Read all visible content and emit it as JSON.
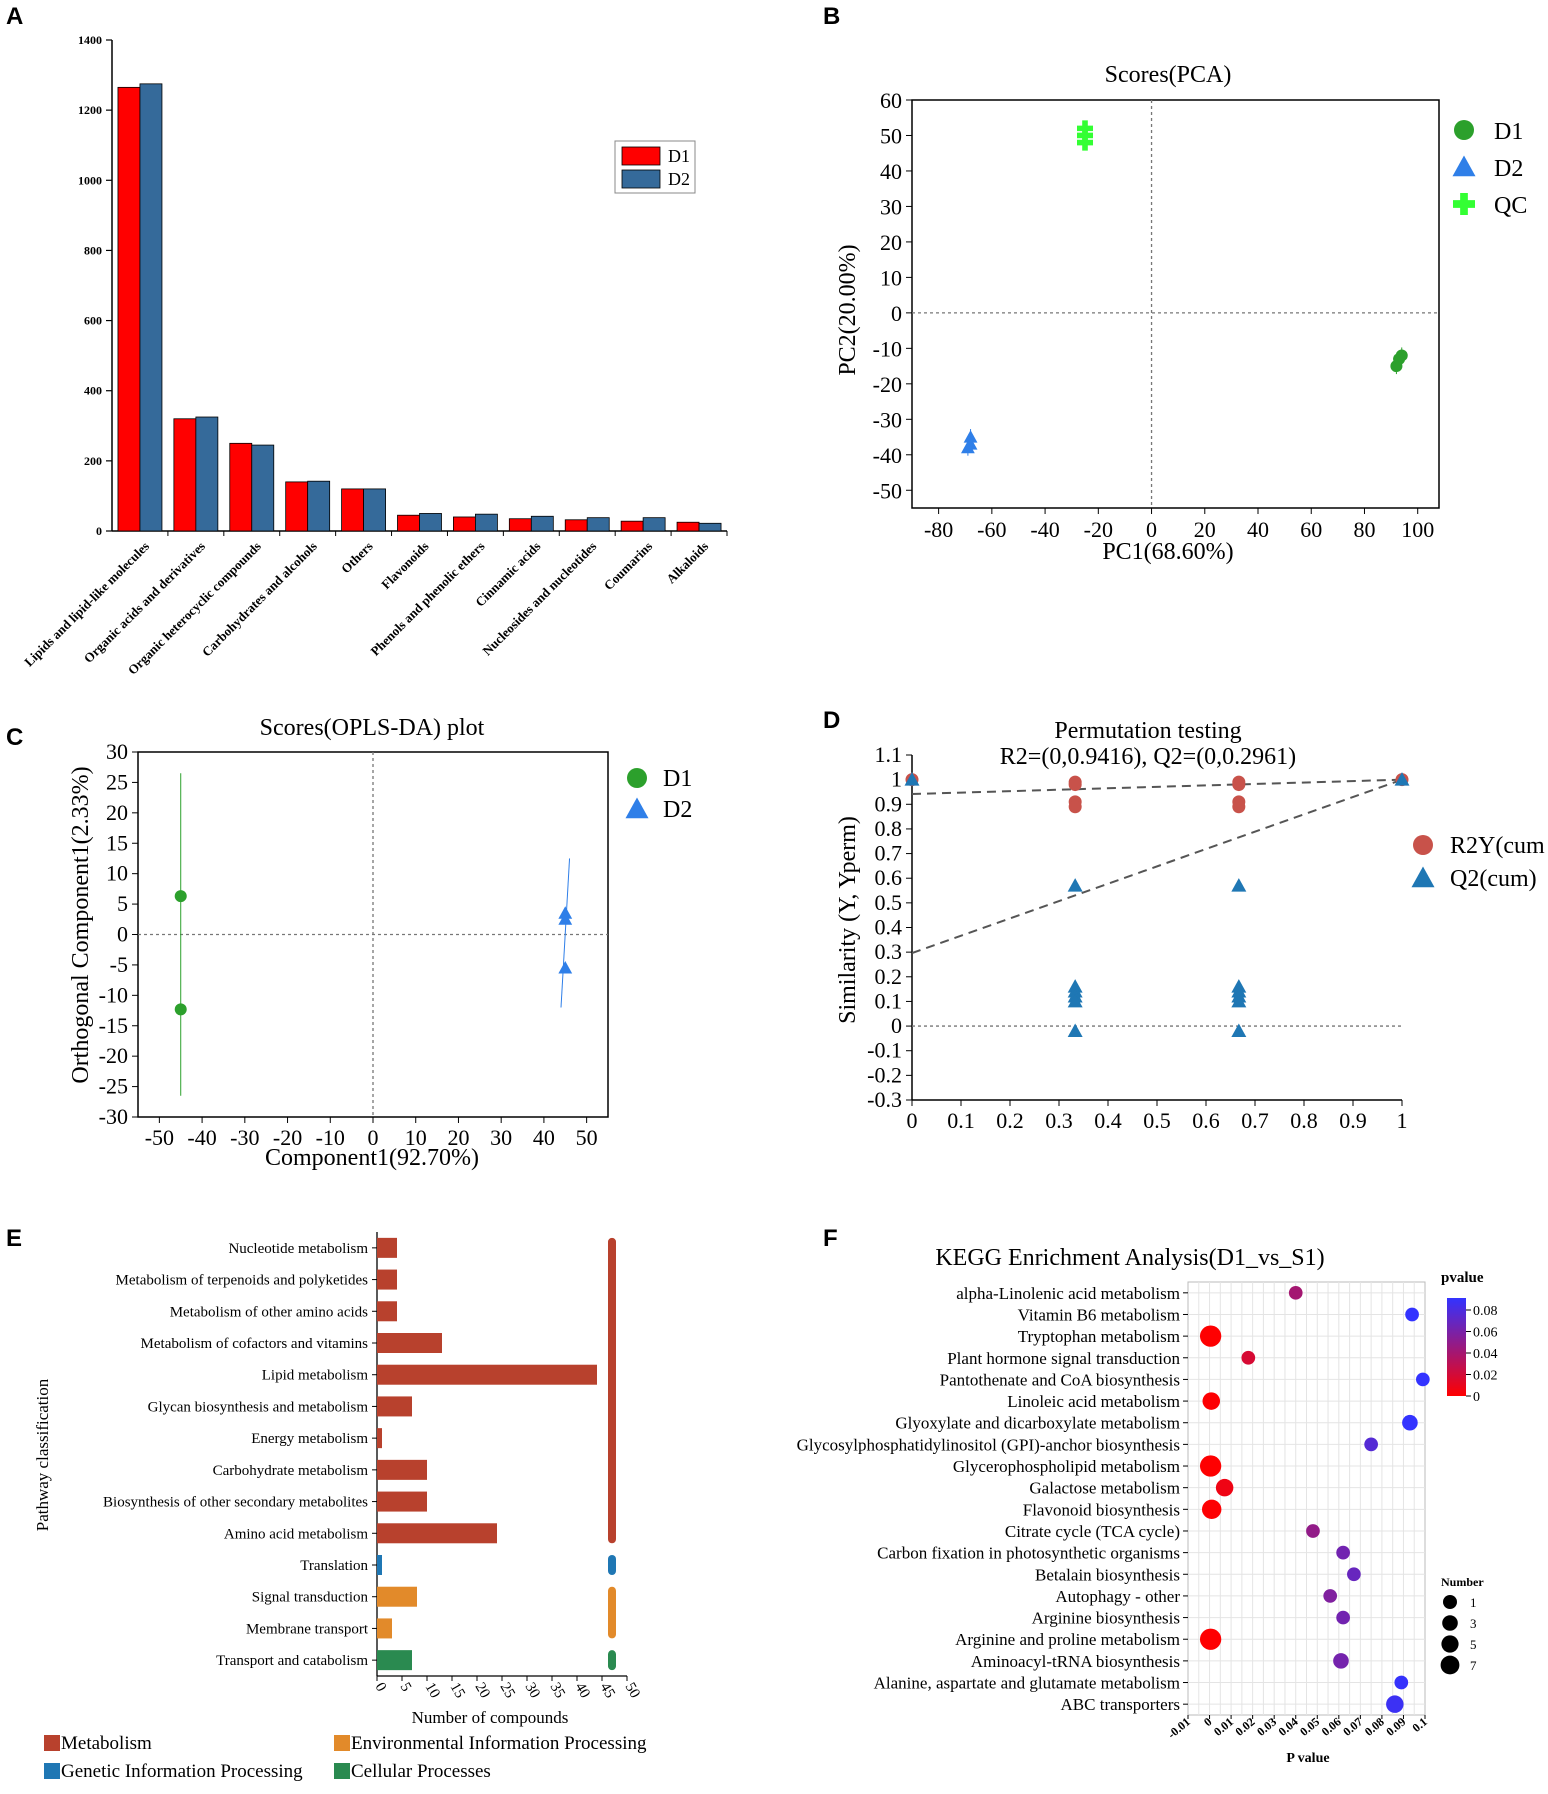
{
  "panel_labels": [
    "A",
    "B",
    "C",
    "D",
    "E",
    "F"
  ],
  "chart_data": [
    {
      "id": "A",
      "type": "bar",
      "title": "",
      "categories": [
        "Lipids and lipid-like molecules",
        "Organic acids and derivatives",
        "Organic heterocyclic compounds",
        "Carbohydrates and alcohols",
        "Others",
        "Flavonoids",
        "Phenols and phenolic ethers",
        "Cinnamic acids",
        "Nucleosides and nucleotides",
        "Coumarins",
        "Alkaloids"
      ],
      "series": [
        {
          "name": "D1",
          "color": "#ff0000",
          "values": [
            1265,
            320,
            250,
            140,
            120,
            45,
            40,
            35,
            32,
            28,
            25
          ]
        },
        {
          "name": "D2",
          "color": "#356a9a",
          "values": [
            1275,
            325,
            245,
            142,
            120,
            50,
            48,
            42,
            38,
            38,
            22
          ]
        }
      ],
      "ylim": [
        0,
        1400
      ],
      "yticks": [
        "0",
        "200",
        "400",
        "600",
        "800",
        "1000",
        "1200",
        "1400"
      ],
      "legend": [
        "D1",
        "D2"
      ]
    },
    {
      "id": "B",
      "type": "scatter",
      "title": "Scores(PCA)",
      "xlabel": "PC1(68.60%)",
      "ylabel": "PC2(20.00%)",
      "xlim": [
        -90,
        108
      ],
      "ylim": [
        -55,
        60
      ],
      "xticks": [
        "-80",
        "-60",
        "-40",
        "-20",
        "0",
        "20",
        "40",
        "60",
        "80",
        "100"
      ],
      "yticks": [
        "60",
        "50",
        "40",
        "30",
        "20",
        "10",
        "0",
        "-10",
        "-20",
        "-30",
        "-40",
        "-50"
      ],
      "series": [
        {
          "name": "D1",
          "color": "#2ca02c",
          "marker": "circle",
          "points": [
            [
              94,
              -12
            ],
            [
              92,
              -15
            ],
            [
              93,
              -13
            ]
          ]
        },
        {
          "name": "D2",
          "color": "#2f7fe8",
          "marker": "triangle",
          "points": [
            [
              -68,
              -35
            ],
            [
              -68,
              -37
            ],
            [
              -69,
              -38
            ]
          ]
        },
        {
          "name": "QC",
          "color": "#33ff33",
          "marker": "plus",
          "points": [
            [
              -25,
              52
            ],
            [
              -25,
              50
            ],
            [
              -25,
              48
            ]
          ]
        }
      ],
      "legend": [
        "D1",
        "D2",
        "QC"
      ]
    },
    {
      "id": "C",
      "type": "scatter",
      "title": "Scores(OPLS-DA) plot",
      "xlabel": "Component1(92.70%)",
      "ylabel": "Orthogonal Component1(2.33%)",
      "xlim": [
        -55,
        55
      ],
      "ylim": [
        -30,
        30
      ],
      "xticks": [
        "-50",
        "-40",
        "-30",
        "-20",
        "-10",
        "0",
        "10",
        "20",
        "30",
        "40",
        "50"
      ],
      "yticks": [
        "30",
        "25",
        "20",
        "15",
        "10",
        "5",
        "0",
        "-5",
        "-10",
        "-15",
        "-20",
        "-25",
        "-30"
      ],
      "series": [
        {
          "name": "D1",
          "color": "#2ca02c",
          "marker": "circle",
          "points": [
            [
              -45,
              6.3
            ],
            [
              -45,
              -12.3
            ]
          ]
        },
        {
          "name": "D2",
          "color": "#2f7fe8",
          "marker": "triangle",
          "points": [
            [
              45,
              3.5
            ],
            [
              45,
              2.5
            ],
            [
              45,
              -5.5
            ]
          ]
        }
      ],
      "legend": [
        "D1",
        "D2"
      ]
    },
    {
      "id": "D",
      "type": "scatter",
      "title": "Permutation testing",
      "subtitle": "R2=(0,0.9416), Q2=(0,0.2961)",
      "xlabel": "",
      "ylabel": "Similarity (Y, Yperm)",
      "xlim": [
        0,
        1
      ],
      "ylim": [
        -0.3,
        1.1
      ],
      "xticks": [
        "0",
        "0.1",
        "0.2",
        "0.3",
        "0.4",
        "0.5",
        "0.6",
        "0.7",
        "0.8",
        "0.9",
        "1"
      ],
      "yticks": [
        "1.1",
        "1",
        "0.9",
        "0.8",
        "0.7",
        "0.6",
        "0.5",
        "0.4",
        "0.3",
        "0.2",
        "0.1",
        "0",
        "-0.1",
        "-0.2",
        "-0.3"
      ],
      "series": [
        {
          "name": "R2Y(cum",
          "color": "#c8524a",
          "marker": "circle",
          "points": [
            [
              0,
              1
            ],
            [
              0.333,
              0.99
            ],
            [
              0.333,
              0.98
            ],
            [
              0.333,
              0.91
            ],
            [
              0.333,
              0.89
            ],
            [
              0.667,
              0.99
            ],
            [
              0.667,
              0.98
            ],
            [
              0.667,
              0.91
            ],
            [
              0.667,
              0.89
            ],
            [
              1,
              1
            ]
          ]
        },
        {
          "name": "Q2(cum)",
          "color": "#1f77b4",
          "marker": "triangle",
          "points": [
            [
              0,
              1
            ],
            [
              0.333,
              0.57
            ],
            [
              0.333,
              0.16
            ],
            [
              0.333,
              0.14
            ],
            [
              0.333,
              0.12
            ],
            [
              0.333,
              0.1
            ],
            [
              0.333,
              -0.02
            ],
            [
              0.667,
              0.57
            ],
            [
              0.667,
              0.16
            ],
            [
              0.667,
              0.14
            ],
            [
              0.667,
              0.12
            ],
            [
              0.667,
              0.1
            ],
            [
              0.667,
              -0.02
            ],
            [
              1,
              1
            ]
          ]
        }
      ],
      "lines": [
        {
          "from": [
            0,
            0.9416
          ],
          "to": [
            1,
            1
          ]
        },
        {
          "from": [
            0,
            0.2961
          ],
          "to": [
            1,
            1
          ]
        }
      ],
      "legend": [
        "R2Y(cum",
        "Q2(cum)"
      ]
    },
    {
      "id": "E",
      "type": "bar",
      "orientation": "horizontal",
      "xlabel": "Number of compounds",
      "ylabel": "Pathway classification",
      "xlim": [
        0,
        50
      ],
      "xticks": [
        "0",
        "5",
        "10",
        "15",
        "20",
        "25",
        "30",
        "35",
        "40",
        "45",
        "50"
      ],
      "categories": [
        "Nucleotide metabolism",
        "Metabolism of terpenoids and polyketides",
        "Metabolism of other amino acids",
        "Metabolism of cofactors and vitamins",
        "Lipid metabolism",
        "Glycan biosynthesis and metabolism",
        "Energy metabolism",
        "Carbohydrate metabolism",
        "Biosynthesis of other secondary metabolites",
        "Amino acid metabolism",
        "Translation",
        "Signal transduction",
        "Membrane transport",
        "Transport and catabolism"
      ],
      "values": [
        4,
        4,
        4,
        13,
        44,
        7,
        1,
        10,
        10,
        24,
        1,
        8,
        3,
        7
      ],
      "groups": [
        "Metabolism",
        "Metabolism",
        "Metabolism",
        "Metabolism",
        "Metabolism",
        "Metabolism",
        "Metabolism",
        "Metabolism",
        "Metabolism",
        "Metabolism",
        "Genetic Information Processing",
        "Environmental Information Processing",
        "Environmental Information Processing",
        "Cellular Processes"
      ],
      "group_colors": {
        "Metabolism": "#b8412d",
        "Environmental Information Processing": "#e28a2a",
        "Genetic Information Processing": "#1f77b4",
        "Cellular Processes": "#2a8a50"
      },
      "legend": [
        "Metabolism",
        "Environmental Information Processing",
        "Genetic Information Processing",
        "Cellular Processes"
      ]
    },
    {
      "id": "F",
      "type": "scatter",
      "title": "KEGG Enrichment Analysis(D1_vs_S1)",
      "xlabel": "P value",
      "xlim": [
        -0.01,
        0.1
      ],
      "xticks": [
        "-0.01",
        "0",
        "0.01",
        "0.02",
        "0.03",
        "0.04",
        "0.05",
        "0.06",
        "0.07",
        "0.08",
        "0.09",
        "0.1"
      ],
      "categories": [
        "alpha-Linolenic acid metabolism",
        "Vitamin B6 metabolism",
        "Tryptophan metabolism",
        "Plant hormone signal transduction",
        "Pantothenate and CoA biosynthesis",
        "Linoleic acid metabolism",
        "Glyoxylate and dicarboxylate metabolism",
        "Glycosylphosphatidylinositol (GPI)-anchor biosynthesis",
        "Glycerophospholipid metabolism",
        "Galactose metabolism",
        "Flavonoid biosynthesis",
        "Citrate cycle (TCA cycle)",
        "Carbon fixation in photosynthetic organisms",
        "Betalain biosynthesis",
        "Autophagy - other",
        "Arginine biosynthesis",
        "Arginine and proline metabolism",
        "Aminoacyl-tRNA biosynthesis",
        "Alanine, aspartate and glutamate metabolism",
        "ABC transporters"
      ],
      "pvalues": [
        0.04,
        0.094,
        0.0005,
        0.018,
        0.099,
        0.0008,
        0.093,
        0.075,
        0.0005,
        0.007,
        0.001,
        0.048,
        0.062,
        0.067,
        0.056,
        0.062,
        0.0005,
        0.061,
        0.089,
        0.086
      ],
      "numbers": [
        3,
        3,
        7,
        3,
        3,
        5,
        4,
        3,
        7,
        5,
        6,
        3,
        3,
        3,
        3,
        3,
        7,
        4,
        3,
        5
      ],
      "colorbar_title": "pvalue",
      "colorbar_ticks": [
        "0.08",
        "0.06",
        "0.04",
        "0.02",
        "0"
      ],
      "size_legend_title": "Number",
      "size_legend": [
        "1",
        "3",
        "5",
        "7"
      ]
    }
  ]
}
